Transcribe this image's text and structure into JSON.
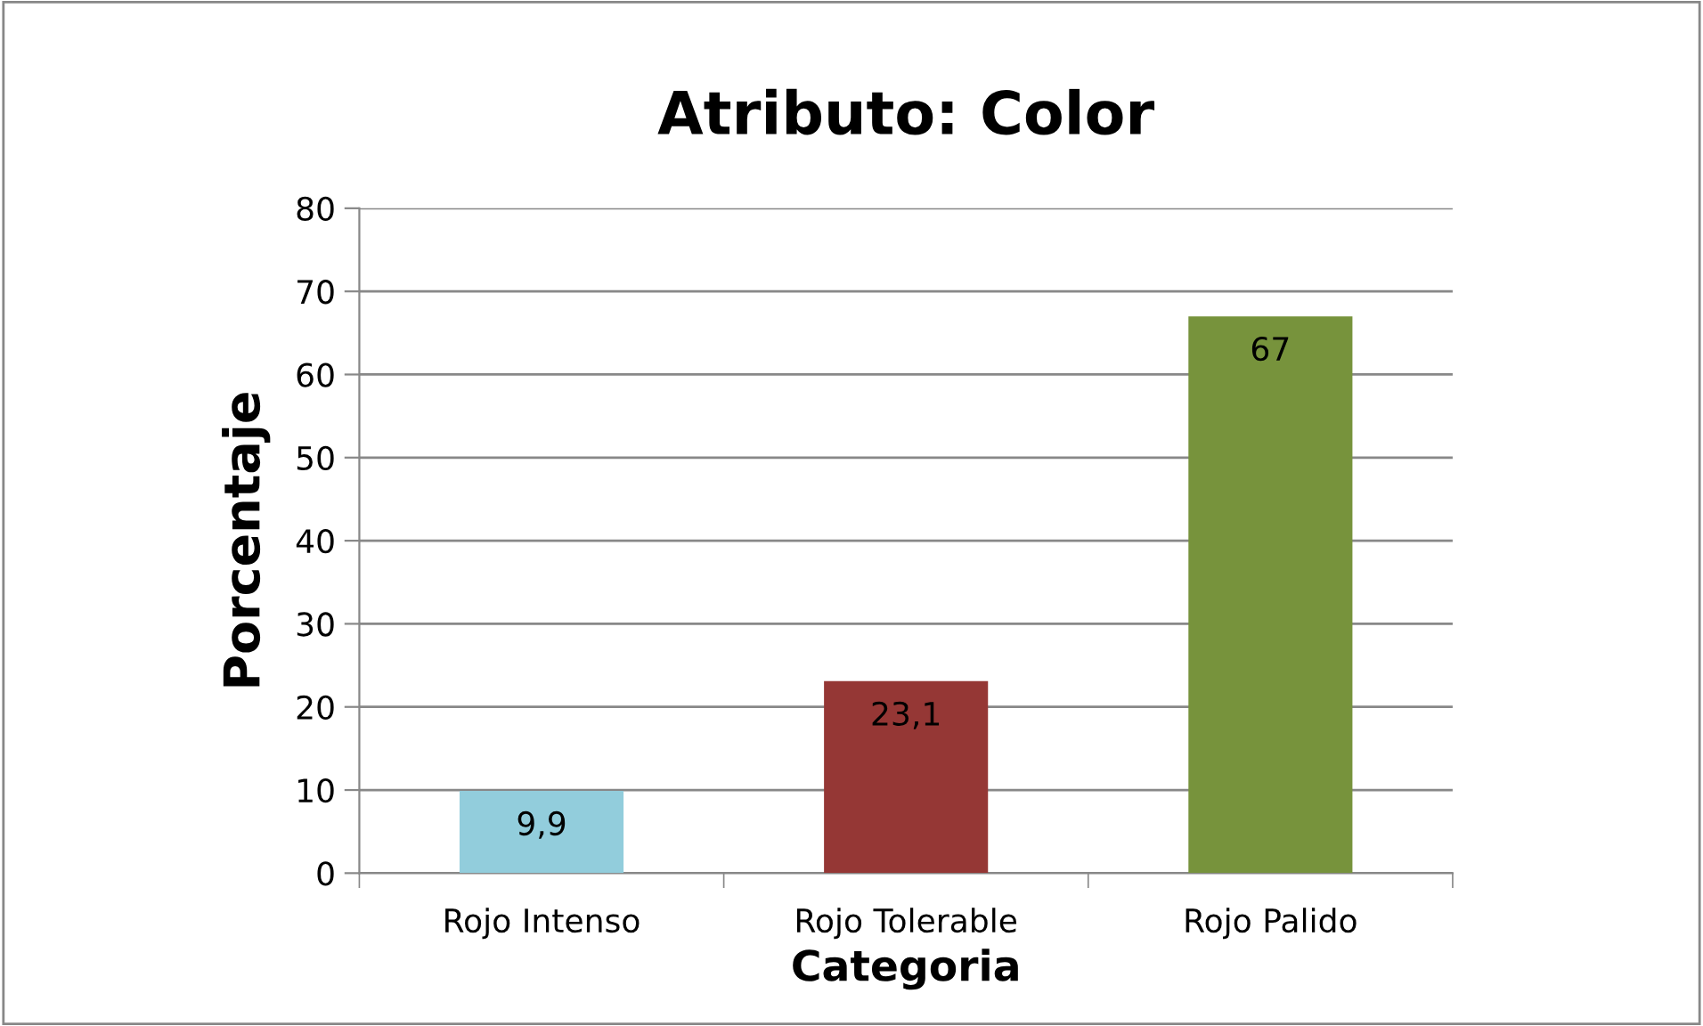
{
  "chart_data": {
    "type": "bar",
    "title": "Atributo: Color",
    "xlabel": "Categoria",
    "ylabel": "Porcentaje",
    "categories": [
      "Rojo Intenso",
      "Rojo Tolerable",
      "Rojo Palido"
    ],
    "values": [
      9.9,
      23.1,
      67
    ],
    "colors": [
      "#92cddc",
      "#953735",
      "#77933c"
    ],
    "value_labels": [
      "9,9",
      "23,1",
      "67"
    ],
    "ylim": [
      0,
      80
    ],
    "yticks": [
      0,
      10,
      20,
      30,
      40,
      50,
      60,
      70,
      80
    ],
    "grid": "y",
    "legend": false
  }
}
